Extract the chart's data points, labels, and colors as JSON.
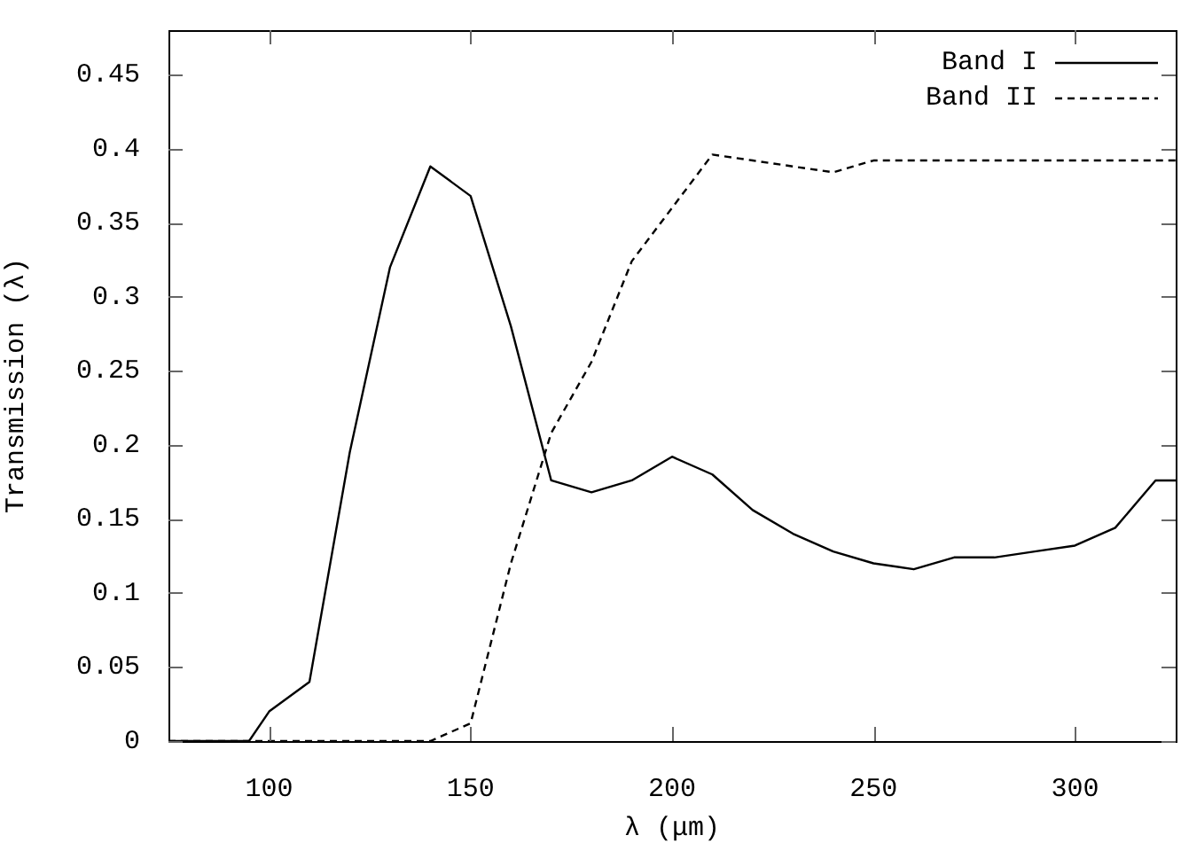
{
  "chart_data": {
    "type": "line",
    "xlabel": "λ (μm)",
    "ylabel": "Transmission (λ)",
    "xlim": [
      75,
      325
    ],
    "xticks": [
      100,
      150,
      200,
      250,
      300
    ],
    "ylim": [
      0,
      0.48
    ],
    "yticks": [
      0,
      0.05,
      0.1,
      0.15,
      0.2,
      0.25,
      0.3,
      0.35,
      0.4,
      0.45
    ],
    "grid": false,
    "legend": "top right",
    "marker": "none",
    "series": [
      {
        "name": "Band I",
        "color": "#000000",
        "line_style": "solid",
        "x": [
          75,
          95,
          100,
          110,
          120,
          130,
          140,
          150,
          160,
          170,
          180,
          190,
          200,
          210,
          220,
          230,
          240,
          250,
          260,
          270,
          280,
          290,
          300,
          310,
          320,
          325
        ],
        "values": [
          0,
          0,
          0.02,
          0.04,
          0.195,
          0.32,
          0.388,
          0.368,
          0.28,
          0.176,
          0.168,
          0.176,
          0.192,
          0.18,
          0.156,
          0.14,
          0.128,
          0.12,
          0.116,
          0.124,
          0.124,
          0.128,
          0.132,
          0.144,
          0.176,
          0.176
        ]
      },
      {
        "name": "Band II",
        "color": "#000000",
        "line_style": "dashed",
        "x": [
          75,
          140,
          150,
          160,
          170,
          180,
          190,
          200,
          210,
          220,
          230,
          240,
          250,
          325
        ],
        "values": [
          0,
          0,
          0.012,
          0.12,
          0.208,
          0.256,
          0.324,
          0.36,
          0.396,
          0.392,
          0.388,
          0.384,
          0.392,
          0.392
        ]
      }
    ]
  }
}
